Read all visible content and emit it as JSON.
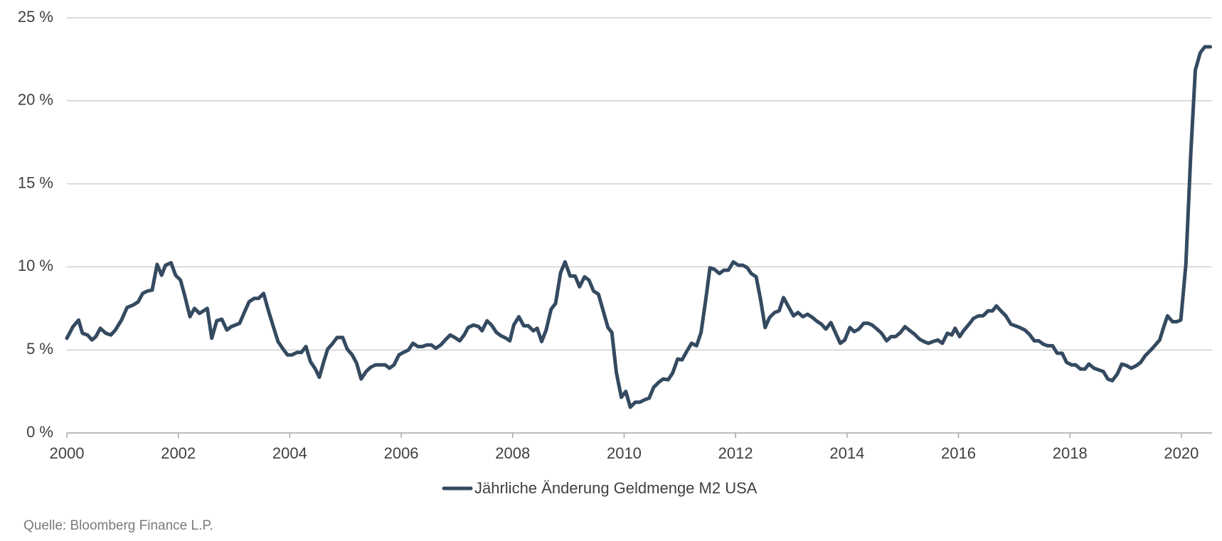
{
  "chart_data": {
    "type": "line",
    "x": [
      2000.0,
      2000.11,
      2000.21,
      2000.28,
      2000.37,
      2000.45,
      2000.52,
      2000.6,
      2000.7,
      2000.79,
      2000.87,
      2000.98,
      2001.08,
      2001.19,
      2001.28,
      2001.36,
      2001.45,
      2001.53,
      2001.62,
      2001.7,
      2001.77,
      2001.87,
      2001.95,
      2002.04,
      2002.12,
      2002.21,
      2002.29,
      2002.38,
      2002.52,
      2002.6,
      2002.69,
      2002.78,
      2002.87,
      2002.95,
      2003.1,
      2003.19,
      2003.27,
      2003.36,
      2003.44,
      2003.53,
      2003.61,
      2003.7,
      2003.79,
      2003.88,
      2003.96,
      2004.04,
      2004.13,
      2004.21,
      2004.29,
      2004.37,
      2004.46,
      2004.53,
      2004.61,
      2004.68,
      2004.76,
      2004.85,
      2004.95,
      2005.03,
      2005.12,
      2005.2,
      2005.28,
      2005.37,
      2005.45,
      2005.54,
      2005.71,
      2005.79,
      2005.87,
      2005.96,
      2006.04,
      2006.13,
      2006.21,
      2006.3,
      2006.38,
      2006.46,
      2006.54,
      2006.62,
      2006.71,
      2006.79,
      2006.88,
      2006.96,
      2007.05,
      2007.13,
      2007.2,
      2007.3,
      2007.39,
      2007.45,
      2007.54,
      2007.62,
      2007.71,
      2007.79,
      2007.88,
      2007.95,
      2008.02,
      2008.11,
      2008.2,
      2008.28,
      2008.37,
      2008.44,
      2008.52,
      2008.6,
      2008.69,
      2008.77,
      2008.86,
      2008.94,
      2009.03,
      2009.12,
      2009.2,
      2009.29,
      2009.37,
      2009.45,
      2009.54,
      2009.62,
      2009.71,
      2009.78,
      2009.86,
      2009.95,
      2010.03,
      2010.11,
      2010.2,
      2010.28,
      2010.37,
      2010.45,
      2010.53,
      2010.62,
      2010.7,
      2010.79,
      2010.87,
      2010.96,
      2011.04,
      2011.13,
      2011.21,
      2011.3,
      2011.38,
      2011.47,
      2011.54,
      2011.62,
      2011.71,
      2011.79,
      2011.87,
      2011.96,
      2012.05,
      2012.13,
      2012.21,
      2012.28,
      2012.37,
      2012.45,
      2012.53,
      2012.61,
      2012.7,
      2012.78,
      2012.86,
      2012.95,
      2013.04,
      2013.12,
      2013.21,
      2013.29,
      2013.38,
      2013.45,
      2013.54,
      2013.62,
      2013.71,
      2013.79,
      2013.88,
      2013.96,
      2014.05,
      2014.13,
      2014.21,
      2014.3,
      2014.38,
      2014.45,
      2014.54,
      2014.62,
      2014.71,
      2014.79,
      2014.87,
      2014.96,
      2015.04,
      2015.13,
      2015.21,
      2015.3,
      2015.38,
      2015.46,
      2015.54,
      2015.63,
      2015.71,
      2015.8,
      2015.88,
      2015.94,
      2016.02,
      2016.1,
      2016.19,
      2016.27,
      2016.36,
      2016.44,
      2016.53,
      2016.61,
      2016.68,
      2016.76,
      2016.85,
      2016.94,
      2017.02,
      2017.1,
      2017.19,
      2017.27,
      2017.36,
      2017.44,
      2017.52,
      2017.6,
      2017.69,
      2017.77,
      2017.86,
      2017.94,
      2018.03,
      2018.1,
      2018.19,
      2018.27,
      2018.34,
      2018.43,
      2018.51,
      2018.6,
      2018.68,
      2018.76,
      2018.85,
      2018.93,
      2019.02,
      2019.1,
      2019.19,
      2019.27,
      2019.35,
      2019.44,
      2019.52,
      2019.61,
      2019.67,
      2019.75,
      2019.84,
      2019.92,
      2019.99,
      2020.08,
      2020.17,
      2020.25,
      2020.34,
      2020.42,
      2020.52
    ],
    "series": [
      {
        "name": "Jährliche Änderung Geldmenge M2 USA",
        "color": "#344a60",
        "values": [
          5.7,
          6.4,
          6.8,
          6.0,
          5.9,
          5.6,
          5.8,
          6.3,
          6.0,
          5.9,
          6.2,
          6.8,
          7.55,
          7.7,
          7.9,
          8.4,
          8.55,
          8.6,
          10.15,
          9.5,
          10.1,
          10.25,
          9.5,
          9.2,
          8.2,
          7.0,
          7.5,
          7.2,
          7.5,
          5.7,
          6.75,
          6.85,
          6.2,
          6.4,
          6.6,
          7.3,
          7.9,
          8.1,
          8.1,
          8.4,
          7.45,
          6.45,
          5.5,
          5.05,
          4.7,
          4.7,
          4.85,
          4.85,
          5.2,
          4.3,
          3.85,
          3.35,
          4.3,
          5.05,
          5.35,
          5.75,
          5.75,
          5.05,
          4.7,
          4.2,
          3.25,
          3.7,
          3.95,
          4.1,
          4.1,
          3.9,
          4.1,
          4.7,
          4.85,
          5.0,
          5.4,
          5.2,
          5.2,
          5.3,
          5.3,
          5.1,
          5.3,
          5.6,
          5.9,
          5.75,
          5.55,
          5.9,
          6.35,
          6.5,
          6.4,
          6.15,
          6.75,
          6.5,
          6.05,
          5.85,
          5.7,
          5.55,
          6.5,
          7.0,
          6.45,
          6.45,
          6.15,
          6.3,
          5.5,
          6.2,
          7.45,
          7.8,
          9.65,
          10.3,
          9.45,
          9.45,
          8.8,
          9.4,
          9.2,
          8.55,
          8.35,
          7.4,
          6.35,
          6.05,
          3.65,
          2.15,
          2.5,
          1.55,
          1.85,
          1.85,
          2.0,
          2.1,
          2.75,
          3.05,
          3.25,
          3.2,
          3.6,
          4.45,
          4.4,
          4.95,
          5.4,
          5.25,
          6.05,
          8.15,
          9.95,
          9.85,
          9.6,
          9.8,
          9.8,
          10.3,
          10.1,
          10.1,
          9.95,
          9.6,
          9.4,
          8.0,
          6.35,
          6.95,
          7.25,
          7.35,
          8.15,
          7.6,
          7.05,
          7.25,
          7.0,
          7.15,
          6.95,
          6.75,
          6.55,
          6.25,
          6.65,
          6.05,
          5.4,
          5.6,
          6.35,
          6.1,
          6.25,
          6.6,
          6.6,
          6.5,
          6.25,
          6.0,
          5.55,
          5.8,
          5.8,
          6.05,
          6.4,
          6.15,
          5.95,
          5.65,
          5.5,
          5.4,
          5.5,
          5.6,
          5.4,
          6.0,
          5.9,
          6.3,
          5.8,
          6.2,
          6.55,
          6.9,
          7.05,
          7.05,
          7.35,
          7.35,
          7.65,
          7.35,
          7.05,
          6.55,
          6.45,
          6.35,
          6.2,
          5.95,
          5.55,
          5.55,
          5.35,
          5.25,
          5.25,
          4.8,
          4.8,
          4.25,
          4.1,
          4.1,
          3.85,
          3.85,
          4.15,
          3.9,
          3.8,
          3.7,
          3.25,
          3.15,
          3.55,
          4.15,
          4.05,
          3.9,
          4.05,
          4.25,
          4.65,
          4.95,
          5.25,
          5.6,
          6.25,
          7.05,
          6.7,
          6.7,
          6.8,
          10.15,
          16.9,
          21.85,
          22.9,
          23.25,
          23.25
        ]
      }
    ],
    "xlim": [
      2000,
      2020.55
    ],
    "xticks": [
      2000,
      2002,
      2004,
      2006,
      2008,
      2010,
      2012,
      2014,
      2016,
      2018,
      2020
    ],
    "ylim": [
      0,
      25
    ],
    "yticks": [
      {
        "value": 0,
        "label": "0 %"
      },
      {
        "value": 5,
        "label": "5 %"
      },
      {
        "value": 10,
        "label": "10 %"
      },
      {
        "value": 15,
        "label": "15 %"
      },
      {
        "value": 20,
        "label": "20 %"
      },
      {
        "value": 25,
        "label": "25 %"
      }
    ],
    "grid": true,
    "legend": "bottom",
    "source": "Quelle: Bloomberg Finance L.P."
  }
}
